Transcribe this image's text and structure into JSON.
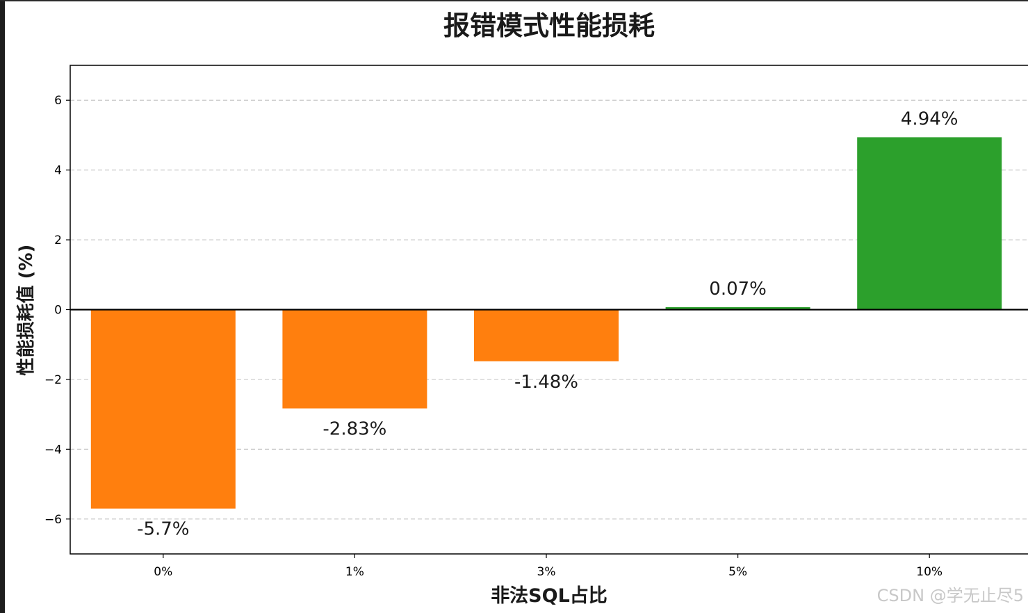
{
  "chart_data": {
    "type": "bar",
    "title": "报错模式性能损耗",
    "xlabel": "非法SQL占比",
    "ylabel": "性能损耗值 (%)",
    "categories": [
      "0%",
      "1%",
      "3%",
      "5%",
      "10%"
    ],
    "values": [
      -5.7,
      -2.83,
      -1.48,
      0.07,
      4.94
    ],
    "data_labels": [
      "-5.7%",
      "-2.83%",
      "-1.48%",
      "0.07%",
      "4.94%"
    ],
    "ylim": [
      -7,
      7
    ],
    "yticks": [
      -6,
      -4,
      -2,
      0,
      2,
      4,
      6
    ],
    "ytick_labels": [
      "−6",
      "−4",
      "−2",
      "0",
      "2",
      "4",
      "6"
    ],
    "grid": "y-dashed",
    "colors": {
      "negative": "#ff7f0e",
      "positive": "#2ca02c",
      "zero_line": "#000000",
      "grid": "#c8c8c8"
    }
  },
  "watermark": "CSDN @学无止尽5"
}
